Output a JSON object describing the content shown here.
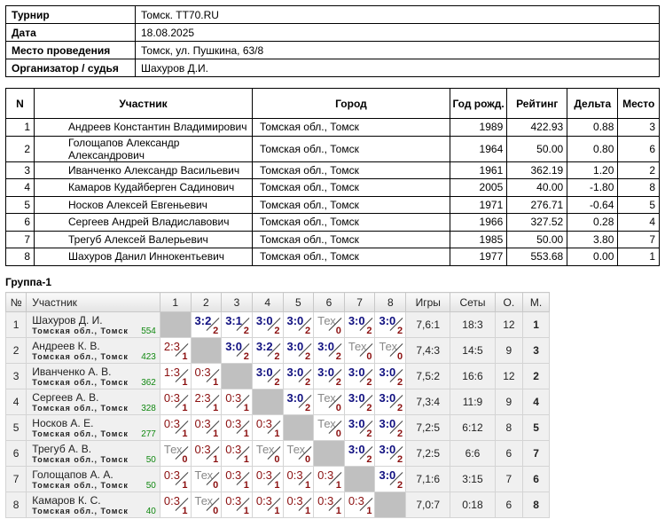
{
  "info": [
    {
      "label": "Турнир",
      "value": "Томск. TT70.RU"
    },
    {
      "label": "Дата",
      "value": "18.08.2025"
    },
    {
      "label": "Место проведения",
      "value": "Томск, ул. Пушкина, 63/8"
    },
    {
      "label": "Организатор / судья",
      "value": "Шахуров Д.И."
    }
  ],
  "participants": {
    "headers": [
      "N",
      "Участник",
      "Город",
      "Год рожд.",
      "Рейтинг",
      "Дельта",
      "Место"
    ],
    "rows": [
      [
        "1",
        "Андреев Константин Владимирович",
        "Томская обл., Томск",
        "1989",
        "422.93",
        "0.88",
        "3"
      ],
      [
        "2",
        "Голощапов Александр Александрович",
        "Томская обл., Томск",
        "1964",
        "50.00",
        "0.80",
        "6"
      ],
      [
        "3",
        "Иванченко Александр Васильевич",
        "Томская обл., Томск",
        "1961",
        "362.19",
        "1.20",
        "2"
      ],
      [
        "4",
        "Камаров Кудайберген Садинович",
        "Томская обл., Томск",
        "2005",
        "40.00",
        "-1.80",
        "8"
      ],
      [
        "5",
        "Носков Алексей Евгеньевич",
        "Томская обл., Томск",
        "1971",
        "276.71",
        "-0.64",
        "5"
      ],
      [
        "6",
        "Сергеев Андрей Владиславович",
        "Томская обл., Томск",
        "1966",
        "327.52",
        "0.28",
        "4"
      ],
      [
        "7",
        "Трегуб Алексей Валерьевич",
        "Томская обл., Томск",
        "1985",
        "50.00",
        "3.80",
        "7"
      ],
      [
        "8",
        "Шахуров Данил Иннокентьевич",
        "Томская обл., Томск",
        "1977",
        "553.68",
        "0.00",
        "1"
      ]
    ]
  },
  "group": {
    "title": "Группа-1",
    "headers": [
      "№",
      "Участник",
      "1",
      "2",
      "3",
      "4",
      "5",
      "6",
      "7",
      "8",
      "Игры",
      "Сеты",
      "О.",
      "М."
    ],
    "rows": [
      {
        "n": "1",
        "name": "Шахуров Д. И.",
        "city": "Томская обл., Томск",
        "rating": "554",
        "cells": [
          null,
          [
            "3:2",
            "2"
          ],
          [
            "3:1",
            "2"
          ],
          [
            "3:0",
            "2"
          ],
          [
            "3:0",
            "2"
          ],
          [
            "Тех",
            "0"
          ],
          [
            "3:0",
            "2"
          ],
          [
            "3:0",
            "2"
          ]
        ],
        "games": "7,6:1",
        "sets": "18:3",
        "points": "12",
        "place": "1"
      },
      {
        "n": "2",
        "name": "Андреев К. В.",
        "city": "Томская обл., Томск",
        "rating": "423",
        "cells": [
          [
            "2:3",
            "1"
          ],
          null,
          [
            "3:0",
            "2"
          ],
          [
            "3:2",
            "2"
          ],
          [
            "3:0",
            "2"
          ],
          [
            "3:0",
            "2"
          ],
          [
            "Тех",
            "0"
          ],
          [
            "Тех",
            "0"
          ]
        ],
        "games": "7,4:3",
        "sets": "14:5",
        "points": "9",
        "place": "3"
      },
      {
        "n": "3",
        "name": "Иванченко А. В.",
        "city": "Томская обл., Томск",
        "rating": "362",
        "cells": [
          [
            "1:3",
            "1"
          ],
          [
            "0:3",
            "1"
          ],
          null,
          [
            "3:0",
            "2"
          ],
          [
            "3:0",
            "2"
          ],
          [
            "3:0",
            "2"
          ],
          [
            "3:0",
            "2"
          ],
          [
            "3:0",
            "2"
          ]
        ],
        "games": "7,5:2",
        "sets": "16:6",
        "points": "12",
        "place": "2"
      },
      {
        "n": "4",
        "name": "Сергеев А. В.",
        "city": "Томская обл., Томск",
        "rating": "328",
        "cells": [
          [
            "0:3",
            "1"
          ],
          [
            "2:3",
            "1"
          ],
          [
            "0:3",
            "1"
          ],
          null,
          [
            "3:0",
            "2"
          ],
          [
            "Тех",
            "0"
          ],
          [
            "3:0",
            "2"
          ],
          [
            "3:0",
            "2"
          ]
        ],
        "games": "7,3:4",
        "sets": "11:9",
        "points": "9",
        "place": "4"
      },
      {
        "n": "5",
        "name": "Носков А. Е.",
        "city": "Томская обл., Томск",
        "rating": "277",
        "cells": [
          [
            "0:3",
            "1"
          ],
          [
            "0:3",
            "1"
          ],
          [
            "0:3",
            "1"
          ],
          [
            "0:3",
            "1"
          ],
          null,
          [
            "Тех",
            "0"
          ],
          [
            "3:0",
            "2"
          ],
          [
            "3:0",
            "2"
          ]
        ],
        "games": "7,2:5",
        "sets": "6:12",
        "points": "8",
        "place": "5"
      },
      {
        "n": "6",
        "name": "Трегуб А. В.",
        "city": "Томская обл., Томск",
        "rating": "50",
        "cells": [
          [
            "Тех",
            "0"
          ],
          [
            "0:3",
            "1"
          ],
          [
            "0:3",
            "1"
          ],
          [
            "Тех",
            "0"
          ],
          [
            "Тех",
            "0"
          ],
          null,
          [
            "3:0",
            "2"
          ],
          [
            "3:0",
            "2"
          ]
        ],
        "games": "7,2:5",
        "sets": "6:6",
        "points": "6",
        "place": "7"
      },
      {
        "n": "7",
        "name": "Голощапов А. А.",
        "city": "Томская обл., Томск",
        "rating": "50",
        "cells": [
          [
            "0:3",
            "1"
          ],
          [
            "Тех",
            "0"
          ],
          [
            "0:3",
            "1"
          ],
          [
            "0:3",
            "1"
          ],
          [
            "0:3",
            "1"
          ],
          [
            "0:3",
            "1"
          ],
          null,
          [
            "3:0",
            "2"
          ]
        ],
        "games": "7,1:6",
        "sets": "3:15",
        "points": "7",
        "place": "6"
      },
      {
        "n": "8",
        "name": "Камаров К. С.",
        "city": "Томская обл., Томск",
        "rating": "40",
        "cells": [
          [
            "0:3",
            "1"
          ],
          [
            "Тех",
            "0"
          ],
          [
            "0:3",
            "1"
          ],
          [
            "0:3",
            "1"
          ],
          [
            "0:3",
            "1"
          ],
          [
            "0:3",
            "1"
          ],
          [
            "0:3",
            "1"
          ],
          null
        ],
        "games": "7,0:7",
        "sets": "0:18",
        "points": "6",
        "place": "8"
      }
    ]
  },
  "colors": {
    "win": "#101080",
    "loss": "#8b1010",
    "tech": "#888888",
    "diagonal": "#c0c0c0",
    "rating": "#118811"
  }
}
